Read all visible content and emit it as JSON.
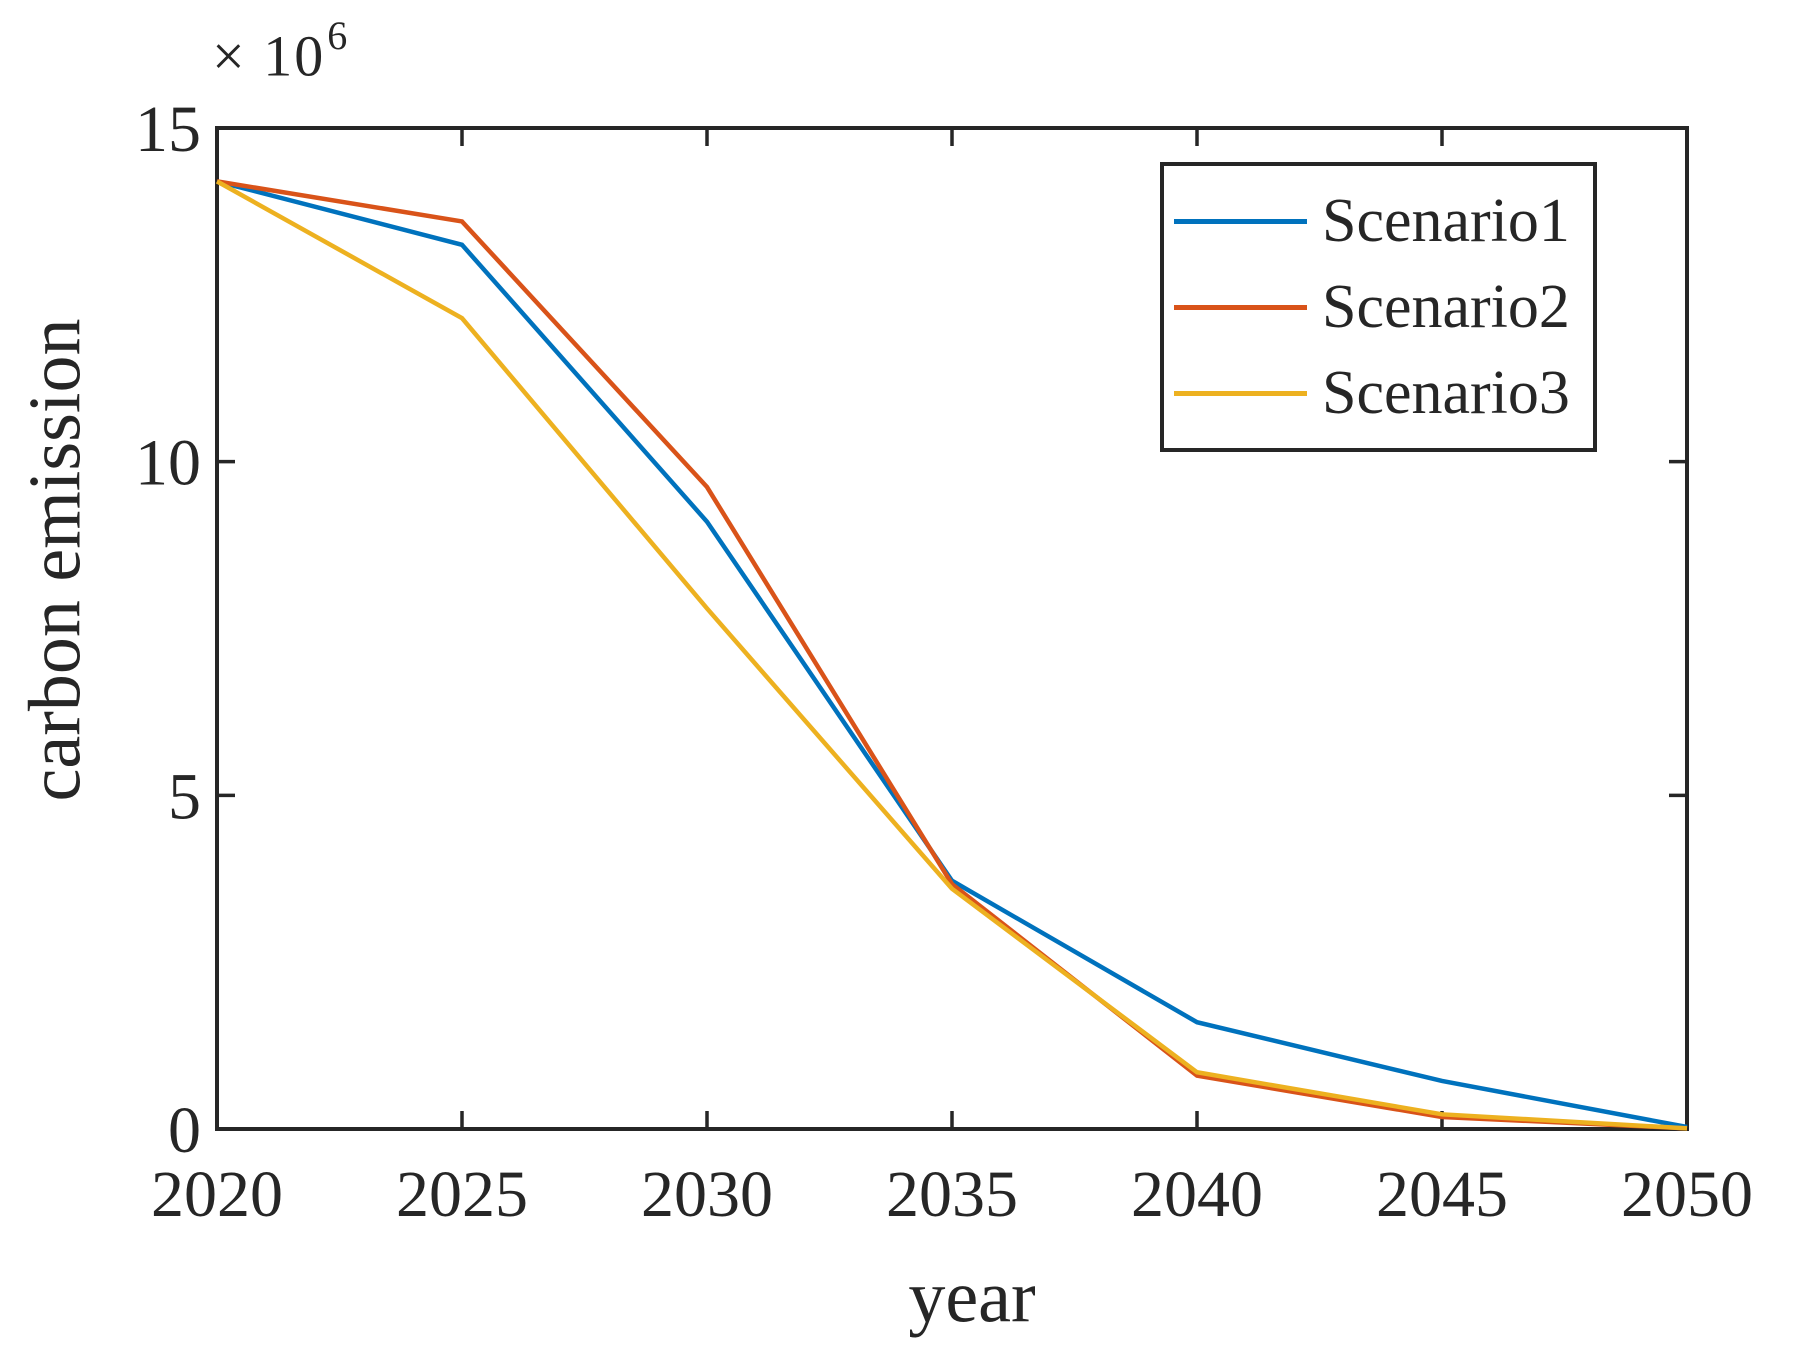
{
  "figure": {
    "background": "#ffffff",
    "axis_color": "#262626",
    "text_color": "#262626"
  },
  "axes": {
    "y_offset": {
      "multiplier": "× 10",
      "exponent": "6"
    }
  },
  "chart_data": {
    "type": "line",
    "title": "",
    "xlabel": "year",
    "ylabel": "carbon emission",
    "xlim": [
      2020,
      2050
    ],
    "ylim": [
      0,
      15000000
    ],
    "grid": false,
    "legend_position": "top-right",
    "x_ticks": [
      2020,
      2025,
      2030,
      2035,
      2040,
      2045,
      2050
    ],
    "x_tick_labels": [
      "2020",
      "2025",
      "2030",
      "2035",
      "2040",
      "2045",
      "2050"
    ],
    "y_ticks": [
      0,
      5000000,
      10000000,
      15000000
    ],
    "y_tick_labels": [
      "0",
      "5",
      "10",
      "15"
    ],
    "y_axis_multiplier_label": "× 10⁶",
    "x": [
      2020,
      2025,
      2030,
      2035,
      2040,
      2045,
      2050
    ],
    "series": [
      {
        "name": "Scenario1",
        "color": "#0072BD",
        "values": [
          14200000,
          13250000,
          9100000,
          3720000,
          1600000,
          720000,
          30000
        ]
      },
      {
        "name": "Scenario2",
        "color": "#D95319",
        "values": [
          14200000,
          13600000,
          9620000,
          3670000,
          800000,
          180000,
          10000
        ]
      },
      {
        "name": "Scenario3",
        "color": "#EDB120",
        "values": [
          14200000,
          12150000,
          7800000,
          3600000,
          850000,
          220000,
          10000
        ]
      }
    ]
  }
}
